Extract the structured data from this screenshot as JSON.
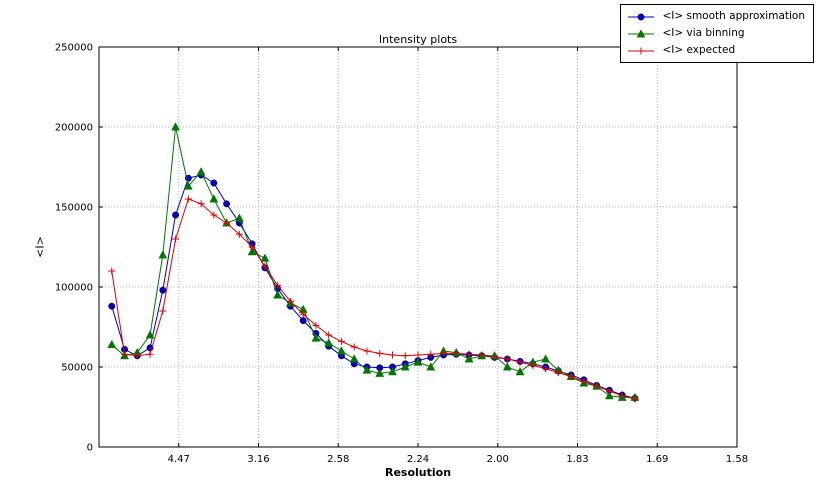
{
  "chart_data": {
    "type": "line",
    "title": "Intensity plots",
    "xlabel": "Resolution",
    "ylabel": "<I>",
    "grid": true,
    "legend_position": "top-right",
    "x_axis": {
      "scale": "inverse-d-squared",
      "range_s2": [
        0,
        0.4
      ],
      "tick_s2": [
        0.05,
        0.1,
        0.15,
        0.2,
        0.25,
        0.3,
        0.35,
        0.4
      ],
      "tick_labels": [
        "4.47",
        "3.16",
        "2.58",
        "2.24",
        "2.00",
        "1.83",
        "1.69",
        "1.58"
      ]
    },
    "y_axis": {
      "range": [
        0,
        250000
      ],
      "ticks": [
        0,
        50000,
        100000,
        150000,
        200000,
        250000
      ],
      "tick_labels": [
        "0",
        "50000",
        "100000",
        "150000",
        "200000",
        "250000"
      ]
    },
    "x_s2": [
      0.008,
      0.016,
      0.024,
      0.032,
      0.04,
      0.048,
      0.056,
      0.064,
      0.072,
      0.08,
      0.088,
      0.096,
      0.104,
      0.112,
      0.12,
      0.128,
      0.136,
      0.144,
      0.152,
      0.16,
      0.168,
      0.176,
      0.184,
      0.192,
      0.2,
      0.208,
      0.216,
      0.224,
      0.232,
      0.24,
      0.248,
      0.256,
      0.264,
      0.272,
      0.28,
      0.288,
      0.296,
      0.304,
      0.312,
      0.32,
      0.328,
      0.336
    ],
    "series": [
      {
        "name": "<I> smooth approximation",
        "color": "#0000cc",
        "marker": "circle",
        "values": [
          88000,
          61000,
          57000,
          62000,
          98000,
          145000,
          168000,
          170000,
          165000,
          152000,
          140000,
          127000,
          112000,
          99000,
          88000,
          79000,
          71000,
          63000,
          57000,
          52000,
          50000,
          49500,
          50000,
          52000,
          54000,
          56000,
          57500,
          58000,
          57500,
          57000,
          56000,
          55000,
          53500,
          52000,
          50000,
          47500,
          45000,
          42000,
          38500,
          35500,
          32500,
          30500
        ]
      },
      {
        "name": "<I> via binning",
        "color": "#007700",
        "marker": "triangle",
        "values": [
          64000,
          57000,
          59000,
          70000,
          120000,
          200000,
          163000,
          172000,
          155000,
          140000,
          143000,
          122000,
          118000,
          95000,
          90000,
          86000,
          68000,
          65000,
          60000,
          55000,
          48000,
          46000,
          47000,
          50000,
          53000,
          50000,
          60000,
          59000,
          55000,
          57000,
          57000,
          50000,
          47000,
          53000,
          55000,
          48000,
          44000,
          40000,
          38000,
          32000,
          31000,
          31000
        ]
      },
      {
        "name": "<I> expected",
        "color": "#dd0000",
        "marker": "plus",
        "values": [
          110000,
          58000,
          57000,
          58000,
          85000,
          130000,
          155000,
          152000,
          145000,
          140000,
          133000,
          125000,
          113000,
          101000,
          91000,
          83000,
          76000,
          70000,
          66000,
          62500,
          60000,
          58500,
          57500,
          57000,
          57500,
          58000,
          58500,
          58500,
          58000,
          57500,
          56500,
          55000,
          53000,
          51000,
          49000,
          46500,
          44000,
          41000,
          38000,
          35000,
          32000,
          30000
        ]
      }
    ],
    "style": {
      "grid_color": "#b3b3b3",
      "axis_color": "#000000",
      "background": "#ffffff"
    }
  }
}
